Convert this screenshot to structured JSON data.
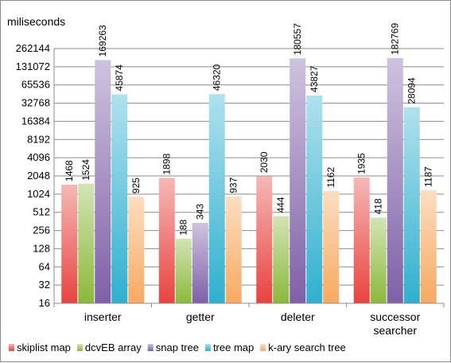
{
  "chart_data": {
    "type": "bar",
    "ylabel": "miliseconds",
    "yscale": "log2",
    "ylim": [
      16,
      262144
    ],
    "yticks": [
      "16",
      "32",
      "64",
      "128",
      "256",
      "512",
      "1024",
      "2048",
      "4096",
      "8192",
      "16384",
      "32768",
      "65536",
      "131072",
      "262144"
    ],
    "categories": [
      [
        "inserter"
      ],
      [
        "getter"
      ],
      [
        "deleter"
      ],
      [
        "successor",
        "searcher"
      ]
    ],
    "series": [
      {
        "name": "skiplist map",
        "color": "#e8433f",
        "values": [
          1468,
          1898,
          2030,
          1935
        ]
      },
      {
        "name": "dcvEB array",
        "color": "#8ab93a",
        "values": [
          1524,
          188,
          444,
          418
        ]
      },
      {
        "name": "snap tree",
        "color": "#7e60a8",
        "values": [
          169263,
          343,
          180557,
          182769
        ]
      },
      {
        "name": "tree map",
        "color": "#2fb0cf",
        "values": [
          45874,
          46320,
          43827,
          28094
        ]
      },
      {
        "name": "k-ary search tree",
        "color": "#f7a95f",
        "values": [
          925,
          937,
          1162,
          1187
        ]
      }
    ],
    "grid": true,
    "legend": "bottom"
  }
}
